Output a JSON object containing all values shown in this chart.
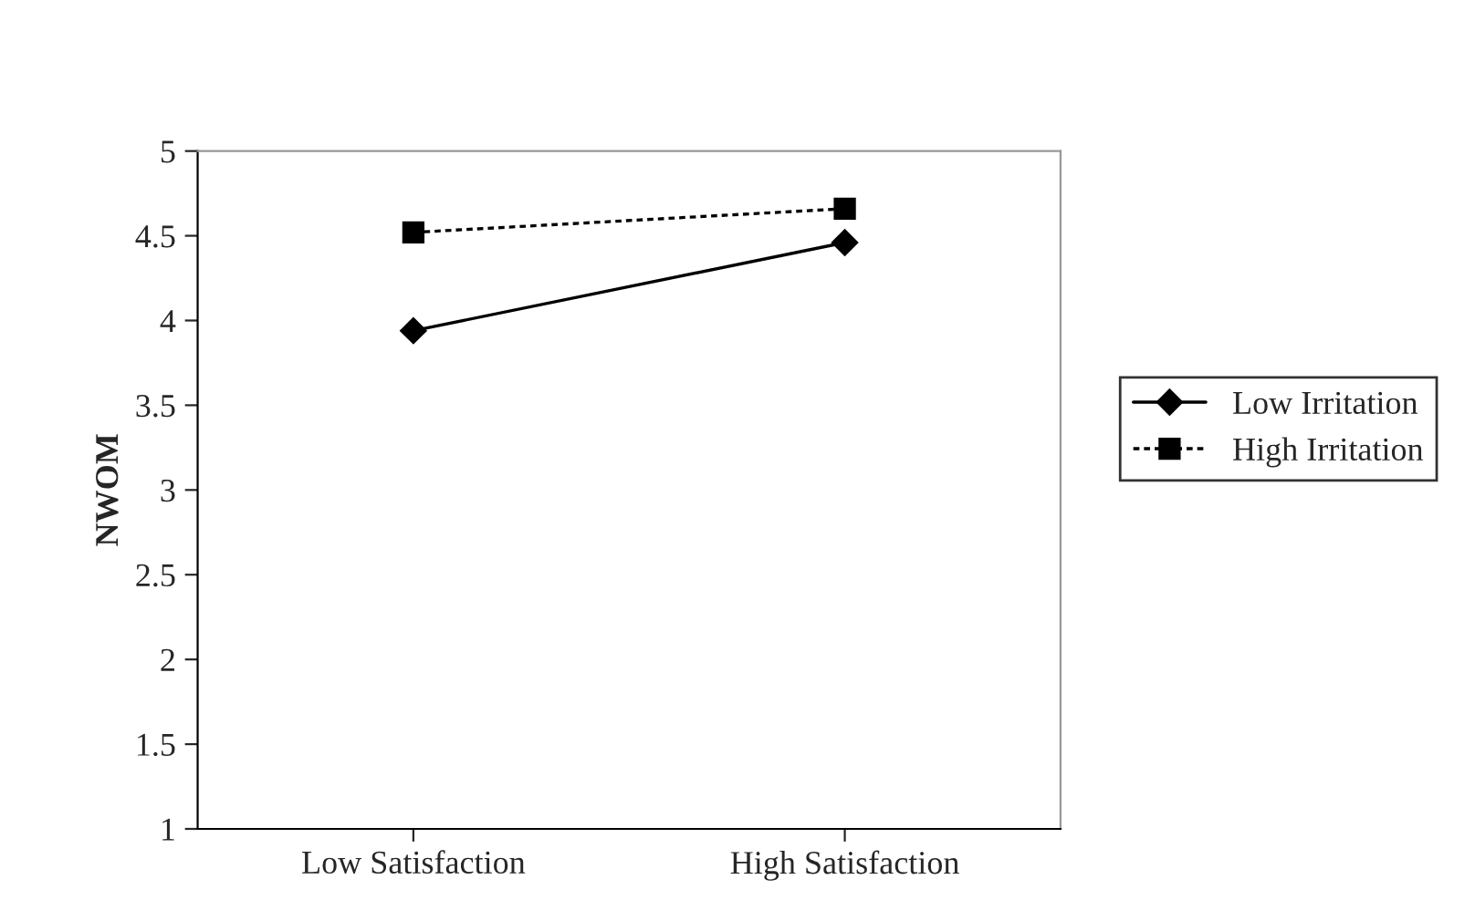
{
  "chart_data": {
    "type": "line",
    "categories": [
      "Low Satisfaction",
      "High Satisfaction"
    ],
    "ylabel": "NWOM",
    "ylim": [
      1,
      5
    ],
    "yticks": [
      1,
      1.5,
      2,
      2.5,
      3,
      3.5,
      4,
      4.5,
      5
    ],
    "series": [
      {
        "name": "Low Irritation",
        "color": "#000000",
        "values": [
          3.94,
          4.46
        ],
        "marker": "diamond",
        "line_style": "solid"
      },
      {
        "name": "High Irritation",
        "color": "#000000",
        "values": [
          4.52,
          4.66
        ],
        "marker": "square",
        "line_style": "dashed"
      }
    ],
    "legend": "right",
    "grid": false
  }
}
